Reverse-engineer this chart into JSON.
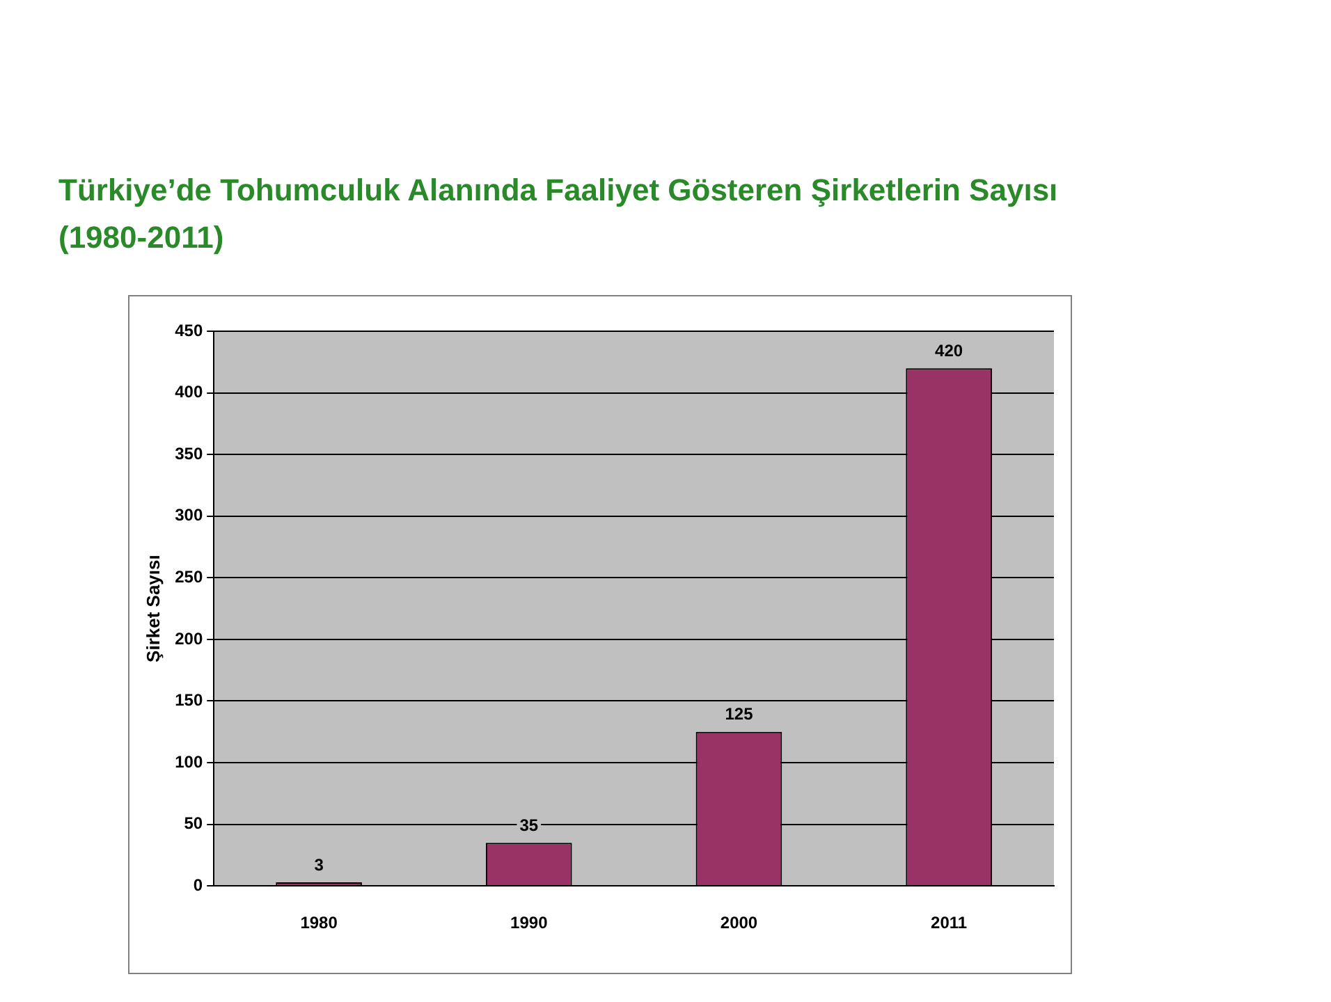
{
  "chart_data": {
    "type": "bar",
    "title": "Türkiye’de Tohumculuk Alanında Faaliyet Gösteren Şirketlerin Sayısı (1980-2011)",
    "ylabel": "Şirket Sayısı",
    "categories": [
      "1980",
      "1990",
      "2000",
      "2011"
    ],
    "series": [
      {
        "color": "#993366",
        "values": [
          3,
          35,
          125,
          420
        ]
      }
    ],
    "ylim": [
      0,
      450
    ],
    "yticks": [
      0,
      50,
      100,
      150,
      200,
      250,
      300,
      350,
      400,
      450
    ],
    "grid": "y",
    "legend": false,
    "data_labels": true
  }
}
